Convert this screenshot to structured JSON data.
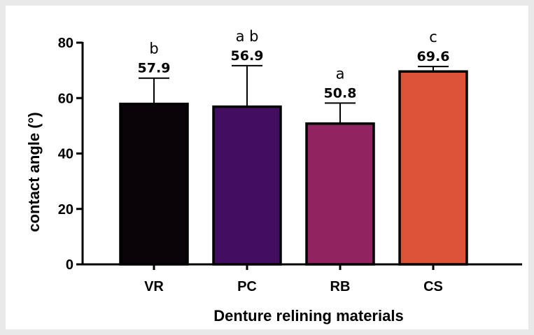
{
  "chart_data": {
    "type": "bar",
    "xlabel": "Denture relining materials",
    "ylabel": "contact angle (°)",
    "ylim": [
      0,
      80
    ],
    "yticks": [
      0,
      20,
      40,
      60,
      80
    ],
    "grid": false,
    "categories": [
      "VR",
      "PC",
      "RB",
      "CS"
    ],
    "values": [
      57.9,
      56.9,
      50.8,
      69.6
    ],
    "value_labels": [
      "57.9",
      "56.9",
      "50.8",
      "69.6"
    ],
    "errors": [
      9.3,
      14.8,
      7.4,
      1.8
    ],
    "significance_letters": [
      "b",
      "a b",
      "a",
      "c"
    ],
    "colors": [
      "#0a0307",
      "#430d61",
      "#8f2461",
      "#dd533a"
    ]
  }
}
